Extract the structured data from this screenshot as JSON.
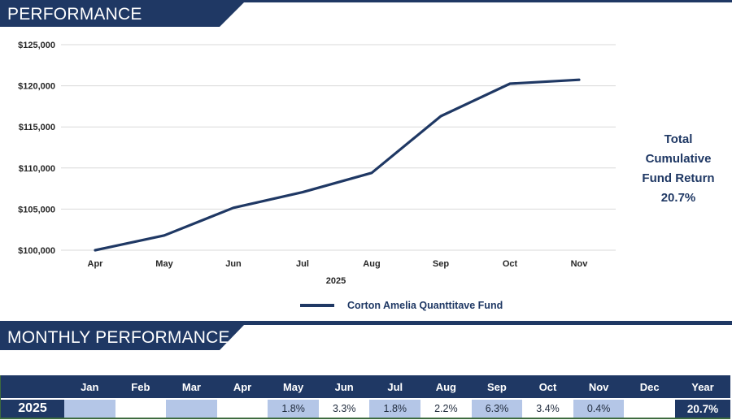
{
  "banners": {
    "performance": "PERFORMANCE",
    "monthly": "MONTHLY PERFORMANCE"
  },
  "chart_data": {
    "type": "line",
    "title": "",
    "x": [
      "Apr",
      "May",
      "Jun",
      "Jul",
      "Aug",
      "Sep",
      "Oct",
      "Nov"
    ],
    "x_axis_secondary_label": "2025",
    "series": [
      {
        "name": "Corton Amelia Quanttitave Fund",
        "values": [
          100000,
          101800,
          105159,
          107052,
          109407,
          116300,
          120254,
          120735
        ]
      }
    ],
    "ylim": [
      100000,
      125000
    ],
    "y_ticks": [
      100000,
      105000,
      110000,
      115000,
      120000,
      125000
    ],
    "y_tick_labels": [
      "$100,000",
      "$105,000",
      "$110,000",
      "$115,000",
      "$120,000",
      "$125,000"
    ],
    "grid": true,
    "legend_position": "bottom",
    "line_color": "#1F3864",
    "grid_color": "#D9D9D9",
    "axis_text_color": "#262626"
  },
  "annotation": {
    "lines": [
      "Total",
      "Cumulative",
      "Fund Return",
      "20.7%"
    ]
  },
  "monthly_table": {
    "columns": [
      "Jan",
      "Feb",
      "Mar",
      "Apr",
      "May",
      "Jun",
      "Jul",
      "Aug",
      "Sep",
      "Oct",
      "Nov",
      "Dec"
    ],
    "year_column": "Year",
    "row_year": "2025",
    "values": [
      "",
      "",
      "",
      "",
      "1.8%",
      "3.3%",
      "1.8%",
      "2.2%",
      "6.3%",
      "3.4%",
      "0.4%",
      ""
    ],
    "year_total": "20.7%"
  },
  "colors": {
    "navy": "#1F3864",
    "band_blue": "#B4C6E7",
    "green_border": "#3E6B3E"
  }
}
